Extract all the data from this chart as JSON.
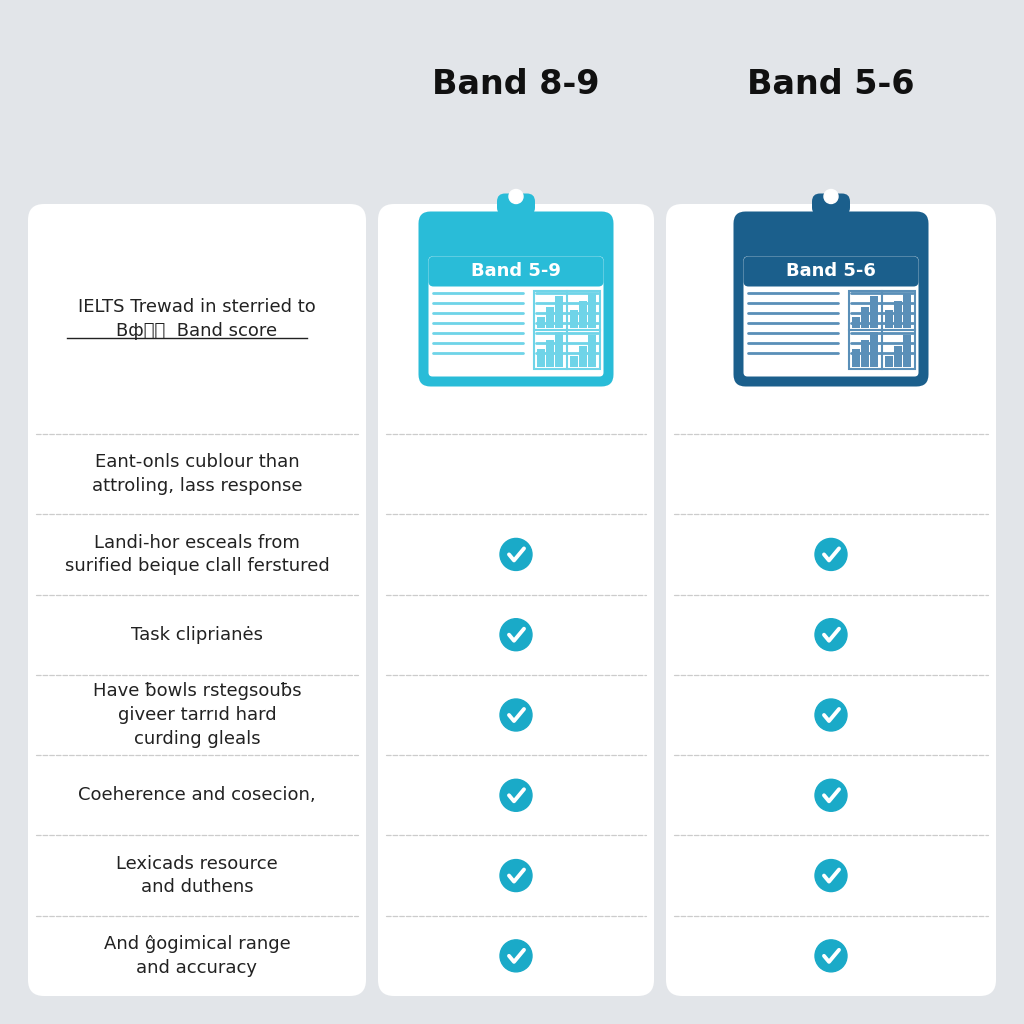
{
  "title_left": "Band 8-9",
  "title_right": "Band 5-6",
  "col1_label": "Band 5-9",
  "col2_label": "Band 5-6",
  "background_color": "#e2e5e9",
  "card_bg": "#ffffff",
  "col1_header_color": "#29bcd8",
  "col2_header_color": "#1b5f8c",
  "col1_line_color": "#6fd4e8",
  "col2_line_color": "#5a8fb8",
  "check_color": "#1aaac8",
  "title_color": "#111111",
  "label_color": "#222222",
  "divider_color": "#cccccc",
  "rows": [
    {
      "label": "IELTS Trewad in sterried to\nBф੮བ  Band score",
      "underline": true,
      "col1": false,
      "col2": false
    },
    {
      "label": "Eant-onls cublour than\nattroling, lass response",
      "underline": false,
      "col1": false,
      "col2": false
    },
    {
      "label": "Landi-hor esceals from\nsurified beique clall ferstured",
      "underline": false,
      "col1": true,
      "col2": true
    },
    {
      "label": "Task cliprianės",
      "underline": false,
      "col1": true,
      "col2": true
    },
    {
      "label": "Have ƀowls rstegsouƀs\ngiveer tarrıd hard\ncurding gleals",
      "underline": false,
      "col1": true,
      "col2": true
    },
    {
      "label": "Coeherence and cosecion,",
      "underline": false,
      "col1": true,
      "col2": true
    },
    {
      "label": "Lexicads resource\nand duthens",
      "underline": false,
      "col1": true,
      "col2": true
    },
    {
      "label": "And ĝogimical range\nand accuracy",
      "underline": false,
      "col1": true,
      "col2": true
    }
  ]
}
